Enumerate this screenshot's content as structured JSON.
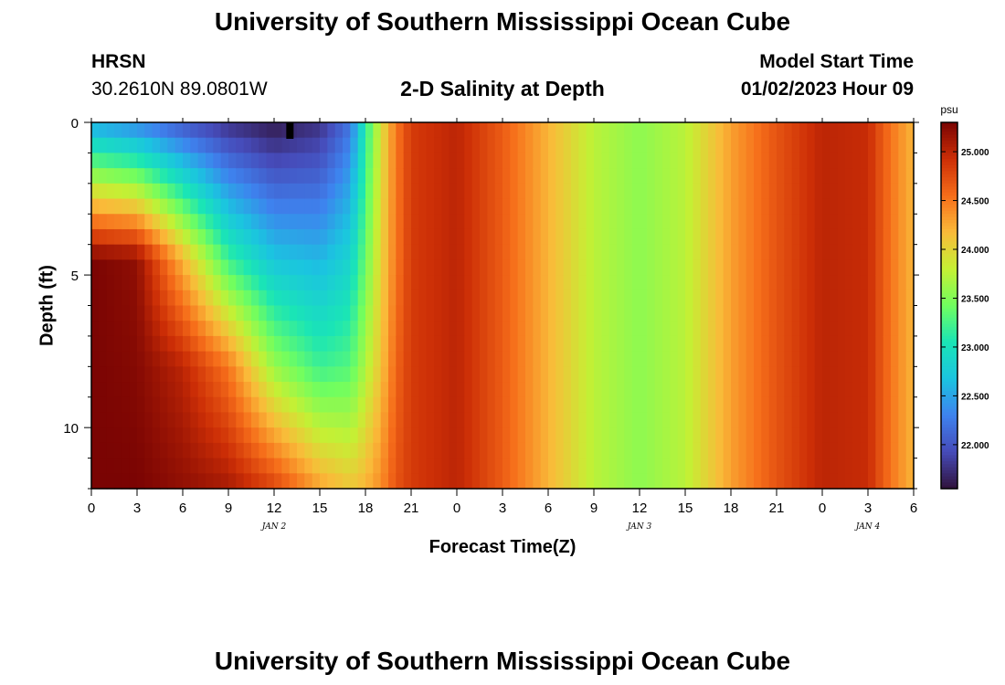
{
  "page": {
    "title": "University of Southern Mississippi Ocean Cube",
    "footer_title": "University of Southern Mississippi Ocean Cube",
    "station": "HRSN",
    "coordinates": "30.2610N  89.0801W",
    "plot_title": "2-D Salinity at Depth",
    "model_start_label": "Model Start Time",
    "model_start_value": "01/02/2023 Hour 09"
  },
  "chart_data": {
    "type": "heatmap",
    "title": "2-D Salinity at Depth",
    "xlabel": "Forecast Time(Z)",
    "ylabel": "Depth (ft)",
    "x_range": [
      0,
      54
    ],
    "y_range": [
      0,
      12
    ],
    "x_tick_values": [
      0,
      3,
      6,
      9,
      12,
      15,
      18,
      21,
      24,
      27,
      30,
      33,
      36,
      39,
      42,
      45,
      48,
      51,
      54
    ],
    "x_tick_labels": [
      "0",
      "3",
      "6",
      "9",
      "12",
      "15",
      "18",
      "21",
      "0",
      "3",
      "6",
      "9",
      "12",
      "15",
      "18",
      "21",
      "0",
      "3",
      "6"
    ],
    "y_tick_values": [
      0,
      5,
      10
    ],
    "y_tick_labels": [
      "0",
      "5",
      "10"
    ],
    "date_markers": [
      {
        "label": "JAN 2",
        "x": 12
      },
      {
        "label": "JAN 3",
        "x": 36
      },
      {
        "label": "JAN 4",
        "x": 51
      }
    ],
    "colorbar": {
      "unit": "psu",
      "min": 21.55,
      "max": 25.3,
      "tick_values": [
        22.0,
        22.5,
        23.0,
        23.5,
        24.0,
        24.5,
        25.0
      ],
      "tick_labels": [
        "22.000",
        "22.500",
        "23.000",
        "23.500",
        "24.000",
        "24.500",
        "25.000"
      ]
    },
    "profile_hours": [
      0,
      3,
      6,
      9,
      12,
      15,
      17,
      18,
      19,
      20,
      21,
      24,
      27,
      30,
      33,
      36,
      39,
      42,
      45,
      48,
      51,
      52,
      53,
      54
    ],
    "profile_values": [
      [
        22.5,
        25.3,
        25.3,
        25.3
      ],
      [
        22.3,
        25.2,
        25.25,
        25.3
      ],
      [
        22.0,
        24.2,
        25.0,
        25.2
      ],
      [
        21.75,
        23.2,
        24.5,
        25.1
      ],
      [
        21.6,
        22.7,
        23.6,
        24.8
      ],
      [
        21.75,
        22.6,
        23.2,
        24.3
      ],
      [
        22.2,
        22.85,
        23.3,
        24.1
      ],
      [
        23.1,
        23.4,
        23.7,
        24.2
      ],
      [
        23.9,
        24.0,
        24.1,
        24.4
      ],
      [
        24.5,
        24.5,
        24.6,
        24.7
      ],
      [
        24.85,
        24.85,
        24.85,
        24.85
      ],
      [
        25.0,
        25.0,
        25.0,
        25.0
      ],
      [
        24.65,
        24.65,
        24.65,
        24.65
      ],
      [
        24.2,
        24.2,
        24.2,
        24.2
      ],
      [
        23.75,
        23.75,
        23.75,
        23.75
      ],
      [
        23.55,
        23.55,
        23.55,
        23.55
      ],
      [
        23.75,
        23.75,
        23.75,
        23.75
      ],
      [
        24.3,
        24.3,
        24.3,
        24.3
      ],
      [
        24.7,
        24.7,
        24.7,
        24.7
      ],
      [
        25.0,
        25.0,
        25.0,
        25.0
      ],
      [
        24.95,
        24.95,
        24.95,
        24.95
      ],
      [
        24.65,
        24.65,
        24.65,
        24.65
      ],
      [
        24.4,
        24.4,
        24.4,
        24.4
      ],
      [
        24.2,
        24.2,
        24.2,
        24.2
      ]
    ],
    "profile_depths": [
      0,
      4.5,
      8,
      12
    ]
  }
}
